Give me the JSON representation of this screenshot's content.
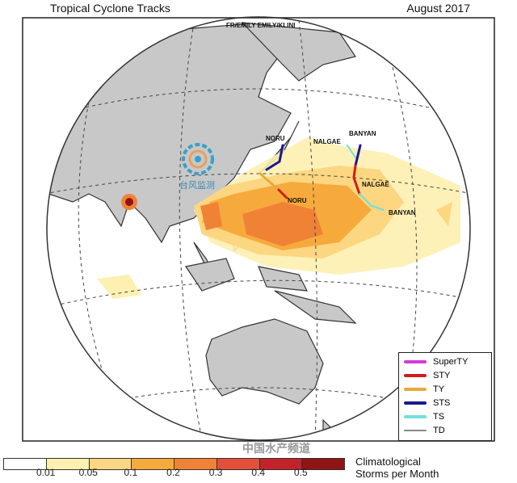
{
  "header": {
    "title": "Tropical Cyclone Tracks",
    "date": "August 2017"
  },
  "storms": {
    "noru_top": "NORU",
    "noru_bottom": "NORU",
    "nalgae_top": "NALGAE",
    "banyan_top": "BANYAN",
    "nalgae": "NALGAE",
    "banyan": "BANYAN",
    "north_labels": "FR/EMILY EMILY/KLINI"
  },
  "logo": {
    "text": "台风监测"
  },
  "legend": {
    "items": [
      {
        "label": "SuperTY",
        "color": "#d63ad6"
      },
      {
        "label": "STY",
        "color": "#c8201c"
      },
      {
        "label": "TY",
        "color": "#e8a93a"
      },
      {
        "label": "STS",
        "color": "#1a1a8c"
      },
      {
        "label": "TS",
        "color": "#6ee0e0"
      },
      {
        "label": "TD",
        "color": "#888888"
      }
    ]
  },
  "colorbar": {
    "title_line1": "Climatological",
    "title_line2": "Storms per Month",
    "ticks": [
      "0.01",
      "0.05",
      "0.1",
      "0.2",
      "0.3",
      "0.4",
      "0.5"
    ],
    "colors": [
      "#ffffff",
      "#fdf0b0",
      "#fcd680",
      "#f7aa3c",
      "#f08236",
      "#e2503a",
      "#c2232a",
      "#8e1416"
    ]
  },
  "watermark": "中国水产频道"
}
